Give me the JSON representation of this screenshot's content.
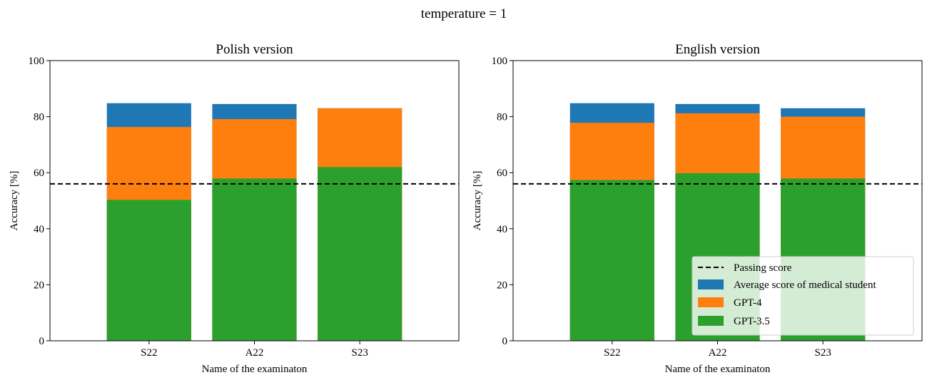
{
  "figure": {
    "title": "temperature = 1"
  },
  "colors": {
    "passing": "#000000",
    "student": "#1f77b4",
    "gpt4": "#ff7f0e",
    "gpt35": "#2ca02c"
  },
  "legend": {
    "placement": "lower-right",
    "panel": 1,
    "items": [
      {
        "key": "passing",
        "label": "Passing score",
        "kind": "dashed-line"
      },
      {
        "key": "student",
        "label": "Average score of medical student",
        "kind": "patch"
      },
      {
        "key": "gpt4",
        "label": "GPT-4",
        "kind": "patch"
      },
      {
        "key": "gpt35",
        "label": "GPT-3.5",
        "kind": "patch"
      }
    ]
  },
  "chart_data": [
    {
      "type": "bar",
      "title": "Polish version",
      "xlabel": "Name of the examinaton",
      "ylabel": "Accuracy [%]",
      "ylim": [
        0,
        100
      ],
      "yticks": [
        0,
        20,
        40,
        60,
        80,
        100
      ],
      "categories": [
        "S22",
        "A22",
        "S23"
      ],
      "passing_score": 56,
      "series": [
        {
          "key": "student",
          "name": "Average score of medical student",
          "values": [
            84.8,
            84.5,
            83.0
          ]
        },
        {
          "key": "gpt4",
          "name": "GPT-4",
          "values": [
            76.3,
            79.1,
            83.0
          ]
        },
        {
          "key": "gpt35",
          "name": "GPT-3.5",
          "values": [
            50.3,
            57.9,
            62.0
          ]
        }
      ]
    },
    {
      "type": "bar",
      "title": "English version",
      "xlabel": "Name of the examinaton",
      "ylabel": "Accuracy [%]",
      "ylim": [
        0,
        100
      ],
      "yticks": [
        0,
        20,
        40,
        60,
        80,
        100
      ],
      "categories": [
        "S22",
        "A22",
        "S23"
      ],
      "passing_score": 56,
      "series": [
        {
          "key": "student",
          "name": "Average score of medical student",
          "values": [
            84.8,
            84.5,
            83.0
          ]
        },
        {
          "key": "gpt4",
          "name": "GPT-4",
          "values": [
            77.8,
            81.2,
            80.0
          ]
        },
        {
          "key": "gpt35",
          "name": "GPT-3.5",
          "values": [
            57.4,
            59.8,
            57.9
          ]
        }
      ]
    }
  ]
}
